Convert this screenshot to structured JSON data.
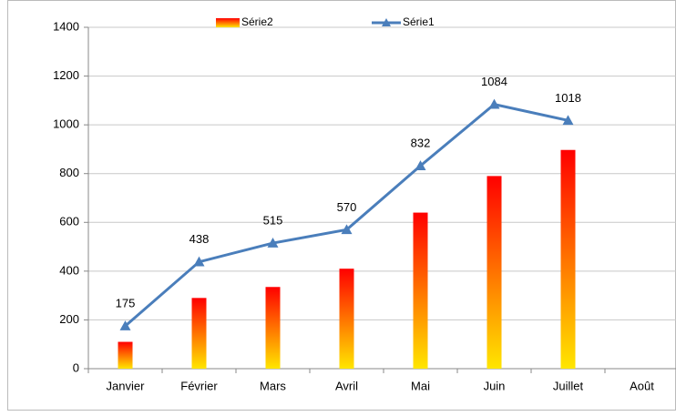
{
  "chart_data": {
    "type": "bar",
    "categories": [
      "Janvier",
      "Février",
      "Mars",
      "Avril",
      "Mai",
      "Juin",
      "Juillet",
      "Août"
    ],
    "series": [
      {
        "name": "Série2",
        "type": "bar",
        "gradient": [
          "#ff0000",
          "#ffe600"
        ],
        "values": [
          110,
          290,
          335,
          410,
          640,
          790,
          897,
          null
        ]
      },
      {
        "name": "Série1",
        "type": "line",
        "color": "#4a7ebb",
        "values": [
          175,
          438,
          515,
          570,
          832,
          1084,
          1018,
          null
        ]
      }
    ],
    "ylim": [
      0,
      1400
    ],
    "yticks": [
      0,
      200,
      400,
      600,
      800,
      1000,
      1200,
      1400
    ],
    "grid": true
  }
}
